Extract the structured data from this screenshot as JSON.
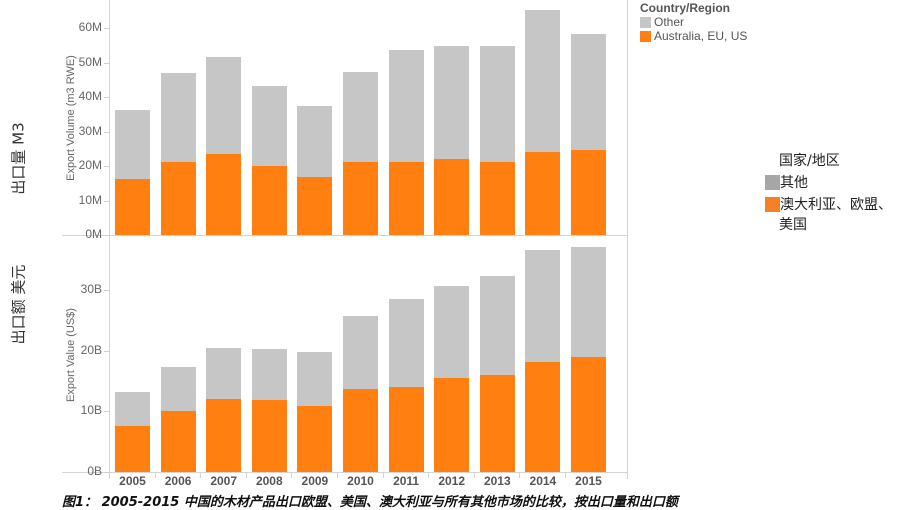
{
  "rows": {
    "top_title": "出口量 M3",
    "bottom_title": "出口额 美元"
  },
  "axes": {
    "top_ylabel": "Export Volume (m3 RWE)",
    "bottom_ylabel": "Export Value (US$)",
    "top_ticks": [
      "0M",
      "10M",
      "20M",
      "30M",
      "40M",
      "50M",
      "60M"
    ],
    "bottom_ticks": [
      "0B",
      "10B",
      "20B",
      "30B"
    ]
  },
  "legend_en": {
    "title": "Country/Region",
    "items": [
      {
        "label": "Other",
        "color": "#c6c6c6"
      },
      {
        "label": "Australia, EU, US",
        "color": "#ff8010"
      }
    ]
  },
  "legend_zh": {
    "title": "国家/地区",
    "items": [
      {
        "label": "其他",
        "color": "#a6a6a6"
      },
      {
        "label": "澳大利亚、欧盟、",
        "label_line2": "美国",
        "color": "#f58025"
      }
    ]
  },
  "caption": "图1： 2005-2015 中国的木材产品出口欧盟、美国、澳大利亚与所有其他市场的比较，按出口量和出口额",
  "colors": {
    "other": "#c6c6c6",
    "main": "#ff8010"
  },
  "chart_data": [
    {
      "type": "bar",
      "stacked": true,
      "title": "出口量 M3",
      "xlabel": "",
      "ylabel": "Export Volume (m3 RWE)",
      "unit": "million m3 RWE",
      "ylim": [
        0,
        65
      ],
      "yticks": [
        "0M",
        "10M",
        "20M",
        "30M",
        "40M",
        "50M",
        "60M"
      ],
      "categories": [
        "2005",
        "2006",
        "2007",
        "2008",
        "2009",
        "2010",
        "2011",
        "2012",
        "2013",
        "2014",
        "2015"
      ],
      "series": [
        {
          "name": "Australia, EU, US",
          "color": "#ff8010",
          "values": [
            16.2,
            21.2,
            23.5,
            20.0,
            16.8,
            21.2,
            21.2,
            22.0,
            21.2,
            24.1,
            24.6
          ]
        },
        {
          "name": "Other",
          "color": "#c6c6c6",
          "values": [
            20.0,
            25.8,
            28.1,
            23.2,
            20.6,
            26.0,
            32.4,
            32.8,
            33.6,
            41.1,
            33.7
          ]
        }
      ],
      "totals": [
        36.2,
        47.0,
        51.6,
        43.2,
        37.4,
        47.2,
        53.6,
        54.8,
        54.8,
        65.2,
        58.3
      ],
      "legend": {
        "title": "Country/Region",
        "position": "right-top"
      },
      "grid": false
    },
    {
      "type": "bar",
      "stacked": true,
      "title": "出口额 美元",
      "xlabel": "",
      "ylabel": "Export Value (US$)",
      "unit": "billion US$",
      "ylim": [
        0,
        38
      ],
      "yticks": [
        "0B",
        "10B",
        "20B",
        "30B"
      ],
      "categories": [
        "2005",
        "2006",
        "2007",
        "2008",
        "2009",
        "2010",
        "2011",
        "2012",
        "2013",
        "2014",
        "2015"
      ],
      "series": [
        {
          "name": "Australia, EU, US",
          "color": "#ff8010",
          "values": [
            7.6,
            10.0,
            12.0,
            11.9,
            10.9,
            13.7,
            14.0,
            15.5,
            16.0,
            18.1,
            18.9
          ]
        },
        {
          "name": "Other",
          "color": "#c6c6c6",
          "values": [
            5.6,
            7.3,
            8.4,
            8.4,
            8.9,
            12.0,
            14.5,
            15.1,
            16.3,
            18.5,
            18.2
          ]
        }
      ],
      "totals": [
        13.2,
        17.3,
        20.4,
        20.3,
        19.8,
        25.7,
        28.5,
        30.6,
        32.3,
        36.6,
        37.1
      ],
      "legend": {
        "title": "Country/Region",
        "position": "right-top"
      },
      "grid": false
    }
  ]
}
